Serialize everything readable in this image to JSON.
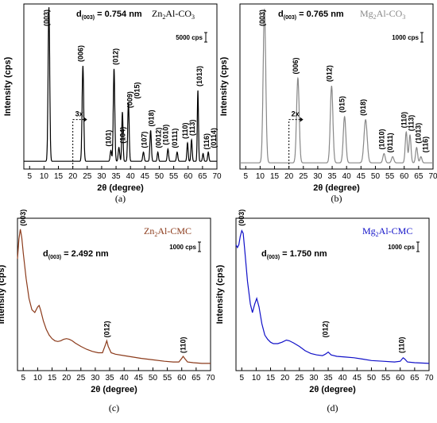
{
  "figure": {
    "panels": [
      {
        "panel_label": "(a)",
        "d_label_base": "d",
        "d_label_sub": "(003)",
        "d_label_value": " = 0.754 nm",
        "sample_label": {
          "prefix": "Zn",
          "sub": "2",
          "suffix": "Al-CO",
          "sub2": "3"
        },
        "sample_color": "#000000",
        "scale_bar_label": "5000 cps",
        "inset_marker": "3x",
        "ylabel": "Intensity (cps)",
        "xlabel": "2θ (degree)",
        "peak_labels": [
          "(003)",
          "(006)",
          "(012)",
          "(009)",
          "(015)",
          "(101)",
          "(104)",
          "(107)",
          "(018)",
          "(0012)",
          "(1010)",
          "(0111)",
          "(110)",
          "(113)",
          "(1013)",
          "(116)",
          "(0114)"
        ]
      },
      {
        "panel_label": "(b)",
        "d_label_base": "d",
        "d_label_sub": "(003)",
        "d_label_value": " = 0.765 nm",
        "sample_label": {
          "prefix": "Mg",
          "sub": "2",
          "suffix": "Al-CO",
          "sub2": "3"
        },
        "sample_color": "#888888",
        "scale_bar_label": "1000 cps",
        "inset_marker": "2x",
        "ylabel": "Intensity (cps)",
        "xlabel": "2θ (degree)",
        "peak_labels": [
          "(003)",
          "(006)",
          "(012)",
          "(015)",
          "(018)",
          "(1010)",
          "(0111)",
          "(110)",
          "(113)",
          "(1013)",
          "(116)"
        ]
      },
      {
        "panel_label": "(c)",
        "d_label_base": "d",
        "d_label_sub": "(003)",
        "d_label_value": " = 2.492 nm",
        "sample_label": {
          "prefix": "Zn",
          "sub": "2",
          "suffix": "Al-CMC",
          "sub2": ""
        },
        "sample_color": "#8B3A1A",
        "scale_bar_label": "1000 cps",
        "ylabel": "Intensity (cps)",
        "xlabel": "2θ (degree)",
        "peak_labels": [
          "(003)",
          "(012)",
          "(110)"
        ]
      },
      {
        "panel_label": "(d)",
        "d_label_base": "d",
        "d_label_sub": "(003)",
        "d_label_value": " = 1.750 nm",
        "sample_label": {
          "prefix": "Mg",
          "sub": "2",
          "suffix": "Al-CMC",
          "sub2": ""
        },
        "sample_color": "#1010C8",
        "scale_bar_label": "1000 cps",
        "ylabel": "Intensity (cps)",
        "xlabel": "2θ (degree)",
        "peak_labels": [
          "(003)",
          "(012)",
          "(110)"
        ]
      }
    ]
  },
  "chart_data": [
    {
      "type": "line",
      "xlabel": "2θ (degree)",
      "ylabel": "Intensity (cps)",
      "xlim": [
        3,
        70
      ],
      "x_ticks": [
        5,
        10,
        15,
        20,
        25,
        30,
        35,
        40,
        45,
        50,
        55,
        60,
        65,
        70
      ],
      "line_color": "#000000",
      "background": 0.04,
      "peaks": [
        {
          "x": 11.7,
          "h": 1.0,
          "w": 0.28,
          "label": "(003)"
        },
        {
          "x": 23.5,
          "h": 0.62,
          "w": 0.28,
          "label": "(006)"
        },
        {
          "x": 34.3,
          "h": 0.6,
          "w": 0.26,
          "label": "(012)"
        },
        {
          "x": 33.2,
          "h": 0.07,
          "w": 0.25,
          "label": "(101)"
        },
        {
          "x": 36.0,
          "h": 0.09,
          "w": 0.25,
          "label": "(104)"
        },
        {
          "x": 37.2,
          "h": 0.32,
          "w": 0.22,
          "label": "(009)"
        },
        {
          "x": 39.3,
          "h": 0.38,
          "w": 0.25,
          "label": "(015)"
        },
        {
          "x": 44.5,
          "h": 0.06,
          "w": 0.25,
          "label": "(107)"
        },
        {
          "x": 47.0,
          "h": 0.2,
          "w": 0.25,
          "label": "(018)"
        },
        {
          "x": 49.5,
          "h": 0.06,
          "w": 0.22,
          "label": "(0012)"
        },
        {
          "x": 53.0,
          "h": 0.08,
          "w": 0.24,
          "label": "(1010)"
        },
        {
          "x": 56.2,
          "h": 0.06,
          "w": 0.24,
          "label": "(0111)"
        },
        {
          "x": 59.8,
          "h": 0.12,
          "w": 0.22,
          "label": "(110)"
        },
        {
          "x": 61.2,
          "h": 0.14,
          "w": 0.22,
          "label": "(113)"
        },
        {
          "x": 63.4,
          "h": 0.46,
          "w": 0.2,
          "label": "(1013)"
        },
        {
          "x": 65.2,
          "h": 0.05,
          "w": 0.22,
          "label": "(116)"
        },
        {
          "x": 67.0,
          "h": 0.06,
          "w": 0.22,
          "label": "(0114)"
        }
      ]
    },
    {
      "type": "line",
      "xlabel": "2θ (degree)",
      "ylabel": "Intensity (cps)",
      "xlim": [
        3,
        70
      ],
      "x_ticks": [
        5,
        10,
        15,
        20,
        25,
        30,
        35,
        40,
        45,
        50,
        55,
        60,
        65,
        70
      ],
      "line_color": "#888888",
      "background": 0.03,
      "peaks": [
        {
          "x": 11.5,
          "h": 1.0,
          "w": 0.45,
          "label": "(003)"
        },
        {
          "x": 23.1,
          "h": 0.55,
          "w": 0.45,
          "label": "(006)"
        },
        {
          "x": 34.8,
          "h": 0.5,
          "w": 0.45,
          "label": "(012)"
        },
        {
          "x": 39.3,
          "h": 0.3,
          "w": 0.45,
          "label": "(015)"
        },
        {
          "x": 46.6,
          "h": 0.28,
          "w": 0.55,
          "label": "(018)"
        },
        {
          "x": 53.0,
          "h": 0.06,
          "w": 0.4,
          "label": "(1010)"
        },
        {
          "x": 56.0,
          "h": 0.04,
          "w": 0.4,
          "label": "(0111)"
        },
        {
          "x": 60.7,
          "h": 0.2,
          "w": 0.35,
          "label": "(110)"
        },
        {
          "x": 62.0,
          "h": 0.18,
          "w": 0.35,
          "label": "(113)"
        },
        {
          "x": 64.3,
          "h": 0.1,
          "w": 0.35,
          "label": "(1013)"
        },
        {
          "x": 65.8,
          "h": 0.04,
          "w": 0.35,
          "label": "(116)"
        }
      ]
    },
    {
      "type": "line",
      "xlabel": "2θ (degree)",
      "ylabel": "Intensity (cps)",
      "xlim": [
        3,
        70
      ],
      "x_ticks": [
        5,
        10,
        15,
        20,
        25,
        30,
        35,
        40,
        45,
        50,
        55,
        60,
        65,
        70
      ],
      "line_color": "#8B3A1A",
      "points": [
        [
          3.0,
          0.78
        ],
        [
          3.5,
          0.92
        ],
        [
          4.0,
          0.99
        ],
        [
          4.5,
          0.93
        ],
        [
          5.0,
          0.82
        ],
        [
          6.0,
          0.64
        ],
        [
          7.0,
          0.5
        ],
        [
          8.0,
          0.42
        ],
        [
          9.0,
          0.4
        ],
        [
          10.0,
          0.44
        ],
        [
          10.5,
          0.45
        ],
        [
          11.0,
          0.42
        ],
        [
          12.0,
          0.34
        ],
        [
          13.0,
          0.28
        ],
        [
          14.0,
          0.24
        ],
        [
          15.0,
          0.215
        ],
        [
          16.0,
          0.2
        ],
        [
          17.0,
          0.195
        ],
        [
          18.0,
          0.2
        ],
        [
          19.0,
          0.21
        ],
        [
          20.0,
          0.215
        ],
        [
          21.0,
          0.21
        ],
        [
          22.0,
          0.2
        ],
        [
          23.0,
          0.185
        ],
        [
          25.0,
          0.16
        ],
        [
          27.0,
          0.14
        ],
        [
          29.0,
          0.125
        ],
        [
          31.0,
          0.115
        ],
        [
          32.5,
          0.115
        ],
        [
          33.5,
          0.17
        ],
        [
          34.0,
          0.2
        ],
        [
          34.5,
          0.16
        ],
        [
          35.5,
          0.115
        ],
        [
          37.0,
          0.105
        ],
        [
          40.0,
          0.095
        ],
        [
          43.0,
          0.085
        ],
        [
          46.0,
          0.075
        ],
        [
          50.0,
          0.065
        ],
        [
          54.0,
          0.055
        ],
        [
          57.0,
          0.05
        ],
        [
          59.0,
          0.05
        ],
        [
          60.0,
          0.075
        ],
        [
          60.5,
          0.09
        ],
        [
          61.2,
          0.07
        ],
        [
          62.0,
          0.05
        ],
        [
          64.0,
          0.045
        ],
        [
          67.0,
          0.04
        ],
        [
          70.0,
          0.04
        ]
      ]
    },
    {
      "type": "line",
      "xlabel": "2θ (degree)",
      "ylabel": "Intensity (cps)",
      "xlim": [
        3,
        70
      ],
      "x_ticks": [
        5,
        10,
        15,
        20,
        25,
        30,
        35,
        40,
        45,
        50,
        55,
        60,
        65,
        70
      ],
      "line_color": "#1010C8",
      "points": [
        [
          3.0,
          0.88
        ],
        [
          3.5,
          0.86
        ],
        [
          4.0,
          0.88
        ],
        [
          4.5,
          0.94
        ],
        [
          5.0,
          0.98
        ],
        [
          5.5,
          0.96
        ],
        [
          6.0,
          0.85
        ],
        [
          7.0,
          0.62
        ],
        [
          8.0,
          0.46
        ],
        [
          8.7,
          0.4
        ],
        [
          9.5,
          0.46
        ],
        [
          10.2,
          0.5
        ],
        [
          11.0,
          0.44
        ],
        [
          12.0,
          0.32
        ],
        [
          13.0,
          0.24
        ],
        [
          14.0,
          0.21
        ],
        [
          15.0,
          0.19
        ],
        [
          16.0,
          0.18
        ],
        [
          17.5,
          0.18
        ],
        [
          19.0,
          0.19
        ],
        [
          20.5,
          0.205
        ],
        [
          21.5,
          0.2
        ],
        [
          23.0,
          0.185
        ],
        [
          25.0,
          0.16
        ],
        [
          27.0,
          0.13
        ],
        [
          29.0,
          0.11
        ],
        [
          31.0,
          0.1
        ],
        [
          33.0,
          0.095
        ],
        [
          34.0,
          0.105
        ],
        [
          35.0,
          0.12
        ],
        [
          36.0,
          0.1
        ],
        [
          38.0,
          0.09
        ],
        [
          41.0,
          0.085
        ],
        [
          44.0,
          0.08
        ],
        [
          47.0,
          0.07
        ],
        [
          50.0,
          0.06
        ],
        [
          54.0,
          0.055
        ],
        [
          58.0,
          0.05
        ],
        [
          60.0,
          0.055
        ],
        [
          61.0,
          0.08
        ],
        [
          61.6,
          0.07
        ],
        [
          62.5,
          0.05
        ],
        [
          65.0,
          0.045
        ],
        [
          70.0,
          0.04
        ]
      ]
    }
  ]
}
